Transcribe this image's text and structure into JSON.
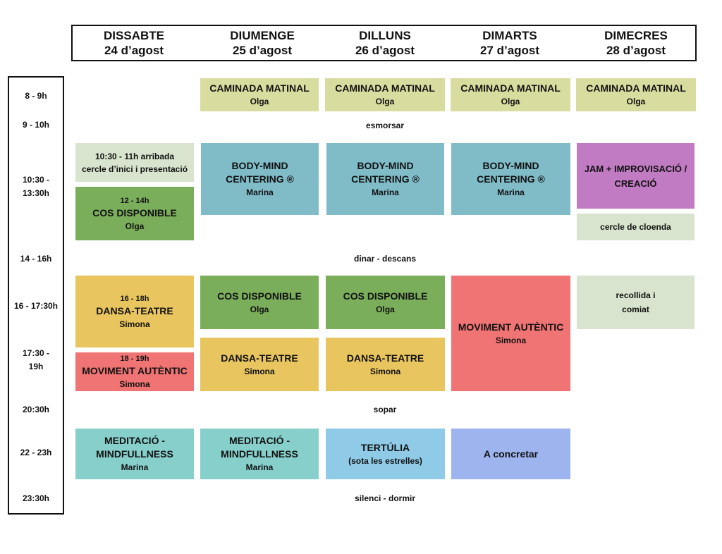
{
  "days": [
    {
      "name": "DISSABTE",
      "date": "24 d’agost"
    },
    {
      "name": "DIUMENGE",
      "date": "25 d’agost"
    },
    {
      "name": "DILLUNS",
      "date": "26 d’agost"
    },
    {
      "name": "DIMARTS",
      "date": "27 d’agost"
    },
    {
      "name": "DIMECRES",
      "date": "28 d’agost"
    }
  ],
  "times": [
    "8 - 9h",
    "9 - 10h",
    "10:30 -",
    "13:30h",
    "14 - 16h",
    "16 - 17:30h",
    "17:30 -",
    "19h",
    "20:30h",
    "22 - 23h",
    "23:30h"
  ],
  "common": {
    "breakfast": "esmorsar",
    "lunch": "dinar - descans",
    "dinner": "sopar",
    "sleep": "silenci - dormir"
  },
  "morning_walk": {
    "title": "CAMINADA MATINAL",
    "leader": "Olga"
  },
  "sat": {
    "arrival_line1": "10:30 - 11h arribada",
    "arrival_line2": "cercle d’inici i presentació",
    "cos_time": "12 - 14h",
    "cos_title": "COS DISPONIBLE",
    "cos_leader": "Olga",
    "dansa_time": "16 - 18h",
    "dansa_title": "DANSA-TEATRE",
    "dansa_leader": "Simona",
    "mov_time": "18 - 19h",
    "mov_title": "MOVIMENT AUTÈNTIC",
    "mov_leader": "Simona",
    "med_title1": "MEDITACIÓ -",
    "med_title2": "MINDFULLNESS",
    "med_leader": "Marina"
  },
  "bmc": {
    "title1": "BODY-MIND",
    "title2": "CENTERING ®",
    "leader": "Marina"
  },
  "cos": {
    "title": "COS DISPONIBLE",
    "leader": "Olga"
  },
  "dansa": {
    "title": "DANSA-TEATRE",
    "leader": "Simona"
  },
  "meditacio": {
    "title1": "MEDITACIÓ -",
    "title2": "MINDFULLNESS",
    "leader": "Marina"
  },
  "tertulia": {
    "title": "TERTÚLIA",
    "sub": "(sota les estrelles)"
  },
  "tue": {
    "mov_title": "MOVIMENT AUTÈNTIC",
    "mov_leader": "Simona",
    "evening": "A concretar"
  },
  "wed": {
    "jam1": "JAM + IMPROVISACIÓ /",
    "jam2": "CREACIÓ",
    "closing": "cercle de cloenda",
    "pickup1": "recollida i",
    "pickup2": "comiat"
  },
  "colors": {
    "walk": "#d9dc9f",
    "pale": "#d8e4cd",
    "bmc": "#80bcc8",
    "cos": "#7bae5a",
    "dansa": "#e8c55e",
    "moviment": "#f07474",
    "jam": "#c07bc3",
    "meditacio": "#86cfcb",
    "tertulia": "#8fcbe7",
    "concretar": "#9eb4ee"
  }
}
